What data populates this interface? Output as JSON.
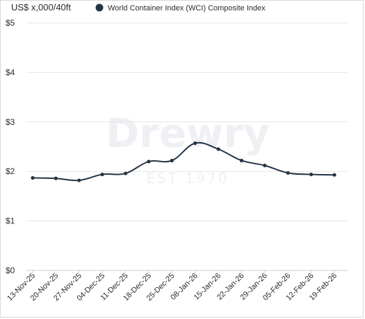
{
  "chart_data": {
    "type": "line",
    "unit_label": "US$ x,000/40ft",
    "legend_entry": "World Container Index (WCI) Composite Index",
    "categories": [
      "13-Nov-25",
      "20-Nov-25",
      "27-Nov-25",
      "04-Dec-25",
      "11-Dec-25",
      "18-Dec-25",
      "25-Dec-25",
      "08-Jan-26",
      "15-Jan-26",
      "22-Jan-26",
      "29-Jan-26",
      "05-Feb-26",
      "12-Feb-26",
      "19-Feb-26"
    ],
    "series": [
      {
        "name": "World Container Index (WCI) Composite Index",
        "values": [
          1.87,
          1.86,
          1.82,
          1.94,
          1.96,
          2.2,
          2.22,
          2.57,
          2.45,
          2.22,
          2.12,
          1.97,
          1.94,
          1.93
        ],
        "color": "#243447"
      }
    ],
    "ylim": [
      0,
      5
    ],
    "yticks": [
      0,
      1,
      2,
      3,
      4,
      5
    ],
    "ytick_labels": [
      "$0",
      "$1",
      "$2",
      "$3",
      "$4",
      "$5"
    ],
    "grid": true,
    "legend_position": "top",
    "watermark": {
      "text": "Drewry",
      "subtext": "EST 1970"
    }
  }
}
